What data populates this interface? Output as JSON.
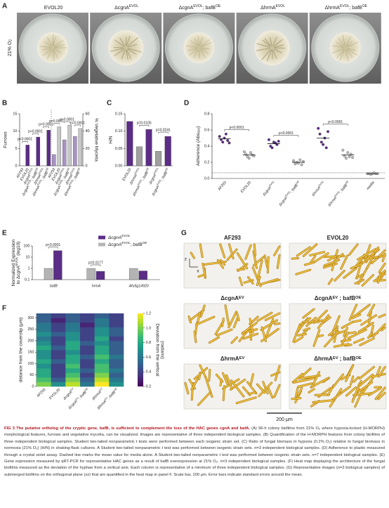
{
  "panel_labels": [
    "A",
    "B",
    "C",
    "D",
    "E",
    "F",
    "G"
  ],
  "panel_a": {
    "side_label": [
      "21% O",
      "2"
    ],
    "side_label_script": "sub",
    "columns": [
      [
        "EVOL20"
      ],
      [
        "ΔcgnA",
        "EVOL"
      ],
      [
        "ΔcgnA",
        "EVOL",
        "; bafB",
        "OE"
      ],
      [
        "ΔhrmA",
        "EVOL"
      ],
      [
        "ΔhrmA",
        "EVOL",
        "; bafB",
        "OE"
      ]
    ]
  },
  "chart_data": [
    {
      "type": "bar",
      "categories": [
        [
          "AF293"
        ],
        [
          "EVOL20"
        ],
        [
          "ΔcgnA",
          "EVOL"
        ],
        [
          "ΔcgnA",
          "EVOL",
          "; bafB",
          "OE"
        ],
        [
          "ΔhrmA",
          "EVOL"
        ],
        [
          "ΔhrmA",
          "EVOL",
          "; bafB",
          "OE"
        ]
      ],
      "ylabel": "Furrows",
      "y2label": "% Vegetative Mycelia",
      "series": [
        {
          "values": [
            0,
            6,
            0,
            8.3,
            0,
            10.3
          ],
          "colors": [
            "#8c8c8c",
            "#5b2d86",
            "#8c8c8c",
            "#5b2d86",
            "#8c8c8c",
            "#5b2d86"
          ],
          "axis": "y"
        },
        {
          "values": [
            13,
            45,
            30,
            47,
            34,
            43
          ],
          "colors": [
            "#a893c4",
            "#c8c8c8",
            "#a893c4",
            "#c8c8c8",
            "#a893c4",
            "#c8c8c8"
          ],
          "axis": "y2"
        }
      ],
      "ylim": [
        0,
        15
      ],
      "yticks": [
        0,
        5,
        10,
        15
      ],
      "y2lim": [
        0,
        60
      ],
      "y2ticks": [
        0,
        20,
        40,
        60
      ],
      "annotations": [
        "p<0.0001",
        "p<0.0001",
        "p=0.0001",
        "p=0.0001",
        "p<0.0001",
        "p=0.0001"
      ]
    },
    {
      "type": "bar",
      "categories": [
        [
          "EVOL20"
        ],
        [
          "ΔhrmA",
          "EVOL"
        ],
        [
          "ΔhrmA",
          "EVOL",
          "; bafB",
          "OE"
        ],
        [
          "ΔcgnA",
          "EVOL"
        ],
        [
          "ΔcgnA",
          "EVOL",
          "; bafB",
          "OE"
        ]
      ],
      "ylabel": "H/N",
      "values": [
        0.128,
        0.055,
        0.105,
        0.042,
        0.085
      ],
      "colors": [
        "#5b2d86",
        "#a0a0a0",
        "#5b2d86",
        "#a0a0a0",
        "#5b2d86"
      ],
      "ylim": [
        0,
        0.15
      ],
      "yticks": [
        {
          "value": 0,
          "label": "0.00"
        },
        0.05,
        {
          "value": 0.1,
          "label": "0.10"
        },
        0.15
      ],
      "annotations": [
        "p=0.0105",
        "p=0.0241"
      ]
    },
    {
      "type": "strip",
      "categories": [
        [
          "AF293"
        ],
        [
          "EVOL20"
        ],
        [
          "ΔcgnA",
          "EVOL"
        ],
        [
          "ΔcgnA",
          "EVOL",
          "; bafB",
          "OE"
        ],
        [
          "ΔhrmA",
          "EVOL"
        ],
        [
          "ΔhrmA",
          "EVOL",
          "; bafB",
          "OE"
        ],
        [
          "media"
        ]
      ],
      "ylabel": [
        "Adherence (Abs",
        "600",
        ")"
      ],
      "ylabel_script": "sub",
      "values": [
        0.49,
        0.29,
        0.43,
        0.2,
        0.5,
        0.29,
        0.06
      ],
      "points": [
        [
          0.52,
          0.48,
          0.45,
          0.5,
          0.55,
          0.47,
          0.44
        ],
        [
          0.33,
          0.3,
          0.27,
          0.25,
          0.32,
          0.29,
          0.28
        ],
        [
          0.48,
          0.4,
          0.38,
          0.45,
          0.44,
          0.42,
          0.46
        ],
        [
          0.22,
          0.18,
          0.2,
          0.19,
          0.23,
          0.17,
          0.21
        ],
        [
          0.62,
          0.55,
          0.45,
          0.42,
          0.5,
          0.38,
          0.58
        ],
        [
          0.35,
          0.28,
          0.25,
          0.32,
          0.27,
          0.3,
          0.26
        ],
        [
          0.06,
          0.06,
          0.05,
          0.06,
          0.07,
          0.06,
          0.06
        ]
      ],
      "colors": [
        "#5b2d86",
        "#bdbdbd",
        "#5b2d86",
        "#bdbdbd",
        "#5b2d86",
        "#bdbdbd",
        "#bdbdbd"
      ],
      "refline": 0.07,
      "ylim": [
        0,
        0.8
      ],
      "yticks": [
        {
          "value": 0,
          "label": "0.0"
        },
        0.2,
        0.4,
        0.6,
        0.8
      ],
      "annotations": [
        "p<0.0001",
        "p<0.0001",
        "p<0.0001"
      ]
    },
    {
      "type": "bar",
      "log": true,
      "categories": [
        "bafB",
        "hrmA",
        "Afu5g14920"
      ],
      "ylabel": [
        [
          "Normalized Expression"
        ],
        [
          "to ΔcgnA",
          "EVOL",
          " (log10)"
        ]
      ],
      "series": [
        {
          "name": [
            "ΔcgnA",
            "EVOL"
          ],
          "color": "#5b2d86",
          "values": [
            38,
            0.55,
            0.6
          ]
        },
        {
          "name": [
            "ΔcgnA",
            "EVOL",
            "; bafB",
            "OE"
          ],
          "color": "#b4b4b4",
          "values": [
            1,
            1,
            1
          ]
        }
      ],
      "ylim": [
        0.1,
        100
      ],
      "yticks": [
        0.1,
        1,
        10,
        100
      ],
      "annotations": [
        "p<0.0001",
        "p=0.0177"
      ]
    },
    {
      "type": "heatmap",
      "categories": [
        [
          "AF293"
        ],
        [
          "EVOL20"
        ],
        [
          "ΔcgnA",
          "EV"
        ],
        [
          "ΔcgnA",
          "EV",
          "; bafB",
          "OE"
        ],
        [
          "ΔhrmA",
          "EV"
        ],
        [
          "ΔhrmA",
          "EV",
          "; bafB",
          "OE"
        ]
      ],
      "ylabel": "distance from the coverslip (μm)",
      "y": [
        0,
        20,
        40,
        60,
        80,
        100,
        120,
        140,
        160,
        180,
        200,
        220,
        240,
        260,
        280,
        300
      ],
      "values": [
        [
          1.0,
          0.9,
          0.8,
          0.8,
          0.7,
          0.8,
          0.7,
          0.7,
          0.8,
          0.7,
          0.6,
          0.7,
          0.6,
          0.6,
          0.5,
          0.5
        ],
        [
          0.7,
          0.5,
          0.4,
          0.4,
          0.4,
          0.5,
          0.4,
          0.4,
          0.5,
          0.4,
          0.4,
          0.5,
          0.4,
          0.4,
          0.3,
          0.4
        ],
        [
          1.1,
          1.0,
          0.9,
          0.8,
          0.9,
          0.8,
          0.8,
          0.7,
          0.8,
          0.8,
          0.7,
          0.7,
          0.6,
          0.6,
          0.5,
          0.5
        ],
        [
          0.6,
          0.5,
          0.4,
          0.5,
          0.4,
          0.4,
          0.5,
          0.4,
          0.4,
          0.5,
          0.4,
          0.4,
          0.4,
          0.3,
          0.4,
          0.4
        ],
        [
          1.2,
          1.1,
          1.0,
          0.9,
          0.9,
          0.8,
          0.9,
          0.8,
          0.8,
          0.7,
          0.8,
          0.7,
          0.7,
          0.6,
          0.6,
          0.5
        ],
        [
          0.7,
          0.6,
          0.5,
          0.6,
          0.5,
          0.5,
          0.6,
          0.5,
          0.5,
          0.5,
          0.4,
          0.5,
          0.5,
          0.4,
          0.4,
          0.4
        ]
      ],
      "ylim": [
        0,
        320
      ],
      "yticks": [
        0,
        50,
        100,
        150,
        200,
        250,
        300
      ],
      "colormap": "viridis",
      "clim": [
        0.2,
        1.2
      ],
      "cticks": [
        0.2,
        0.4,
        0.6,
        0.8,
        {
          "value": 1,
          "label": "1.0"
        },
        1.2
      ],
      "clabel": [
        "Deviation from the vertical",
        "(radians)"
      ]
    }
  ],
  "panel_g": {
    "titles": [
      [
        "AF293"
      ],
      [
        "EVOL20"
      ],
      [
        "ΔcgnA",
        "EV"
      ],
      [
        "ΔcgnA",
        "EV",
        " ; bafB",
        "OE"
      ],
      [
        "ΔhrmA",
        "EV"
      ],
      [
        "ΔhrmA",
        "EV",
        " ; bafB",
        "OE"
      ]
    ],
    "axis_z": "z",
    "axis_x": "x",
    "scale_bar": "200 μm"
  },
  "caption": {
    "label": "FIG 3",
    "title": "The putative ortholog of the cryptic gene, bafB, is sufficient to complement the loss of the HAC genes cgnA and bafA.",
    "text": "(A) 96-h colony biofilms from 21% O₂ where hypoxia-locked (H-MORPH) morphological features, furrows and vegetative mycelia, can be visualized. Images are representative of three independent biological samples. (B) Quantification of the H-MORPH features from colony biofilms of three independent biological samples. Student two-tailed nonparametric t tests were performed between each isogenic strain set. (C) Ratio of fungal biomass in hypoxia (0.2% O₂) relative to fungal biomass in normoxia (21% O₂) (H/N) in shaking-flask cultures. A Student two-tailed nonparametric t test was performed between isogenic strain sets. n=3 independent biological samples. (D) Adherence to plastic measured through a crystal violet assay. Dashed line marks the mean value for media alone. A Student two-tailed nonparametric t test was performed between isogenic strain sets. n=7 independent biological samples. (E) Gene expression measured by qRT-PCR for representative HAC genes as a result of bafB overexpression at 21% O₂. n=3 independent biological samples. (F) Heat map displaying the architecture of the fungal biofilms measured as the deviation of the hyphae from a vertical axis. Each column is representative of a minimum of three independent biological samples. (G) Representative images (n=3 biological samples) of submerged biofilms on the orthogonal plane (xz) that are quantified in the heat map in panel F. Scale bar, 200 μm. Error bars indicate standard errors around the mean."
  }
}
